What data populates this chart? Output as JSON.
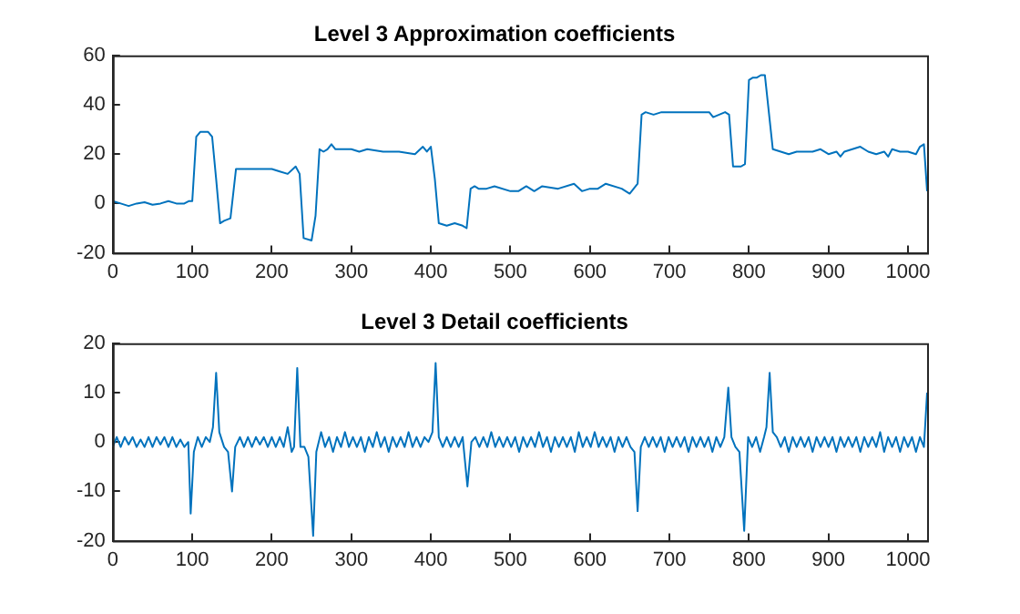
{
  "chart_data": [
    {
      "type": "line",
      "title": "Level 3 Approximation coefficients",
      "xlim": [
        0,
        1024
      ],
      "xticks": [
        0,
        100,
        200,
        300,
        400,
        500,
        600,
        700,
        800,
        900,
        1000
      ],
      "ylim": [
        -20,
        60
      ],
      "yticks": [
        -20,
        0,
        20,
        40,
        60
      ],
      "grid": false,
      "legend": false,
      "marker": "none",
      "line_style": "solid",
      "series": [
        {
          "color": "#0072bd",
          "x": [
            0,
            10,
            20,
            30,
            40,
            50,
            60,
            70,
            80,
            90,
            96,
            100,
            105,
            110,
            120,
            125,
            130,
            135,
            140,
            148,
            155,
            160,
            180,
            200,
            210,
            220,
            230,
            235,
            240,
            250,
            255,
            260,
            265,
            270,
            275,
            280,
            300,
            310,
            320,
            340,
            360,
            380,
            390,
            395,
            400,
            405,
            410,
            420,
            430,
            440,
            445,
            450,
            455,
            460,
            470,
            480,
            500,
            510,
            520,
            530,
            540,
            560,
            580,
            590,
            600,
            610,
            620,
            640,
            650,
            660,
            665,
            670,
            680,
            690,
            700,
            720,
            740,
            750,
            755,
            770,
            775,
            780,
            790,
            795,
            800,
            805,
            810,
            815,
            820,
            830,
            840,
            850,
            860,
            880,
            890,
            900,
            910,
            915,
            920,
            940,
            950,
            960,
            970,
            975,
            980,
            990,
            1000,
            1010,
            1015,
            1020,
            1024
          ],
          "values": [
            1,
            0,
            -1,
            0,
            0.5,
            -0.5,
            0,
            1,
            0,
            0,
            1,
            1,
            27,
            29,
            29,
            27,
            10,
            -8,
            -7,
            -6,
            14,
            14,
            14,
            14,
            13,
            12,
            15,
            12,
            -14,
            -15,
            -5,
            22,
            21,
            22,
            24,
            22,
            22,
            21,
            22,
            21,
            21,
            20,
            23,
            21,
            23,
            10,
            -8,
            -9,
            -8,
            -9,
            -10,
            6,
            7,
            6,
            6,
            7,
            5,
            5,
            7,
            5,
            7,
            6,
            8,
            5,
            6,
            6,
            8,
            6,
            4,
            8,
            36,
            37,
            36,
            37,
            37,
            37,
            37,
            37,
            35,
            37,
            36,
            15,
            15,
            16,
            50,
            51,
            51,
            52,
            52,
            22,
            21,
            20,
            21,
            21,
            22,
            20,
            21,
            19,
            21,
            23,
            21,
            20,
            21,
            19,
            22,
            21,
            21,
            20,
            23,
            24,
            5
          ]
        }
      ]
    },
    {
      "type": "line",
      "title": "Level 3 Detail coefficients",
      "xlim": [
        0,
        1024
      ],
      "xticks": [
        0,
        100,
        200,
        300,
        400,
        500,
        600,
        700,
        800,
        900,
        1000
      ],
      "ylim": [
        -20,
        20
      ],
      "yticks": [
        -20,
        -10,
        0,
        10,
        20
      ],
      "grid": false,
      "legend": false,
      "marker": "none",
      "line_style": "solid",
      "series": [
        {
          "color": "#0072bd",
          "x": [
            0,
            5,
            10,
            15,
            20,
            25,
            30,
            35,
            40,
            45,
            50,
            55,
            60,
            65,
            70,
            75,
            80,
            85,
            90,
            95,
            98,
            102,
            107,
            112,
            117,
            122,
            126,
            130,
            134,
            140,
            145,
            150,
            154,
            160,
            165,
            170,
            175,
            180,
            185,
            190,
            195,
            200,
            205,
            210,
            215,
            220,
            225,
            228,
            232,
            236,
            241,
            246,
            252,
            256,
            262,
            267,
            272,
            277,
            282,
            287,
            292,
            297,
            302,
            307,
            312,
            317,
            322,
            327,
            332,
            337,
            342,
            347,
            352,
            357,
            362,
            367,
            372,
            377,
            382,
            387,
            392,
            397,
            402,
            406,
            410,
            415,
            420,
            425,
            430,
            435,
            440,
            446,
            451,
            456,
            461,
            466,
            471,
            476,
            481,
            486,
            491,
            496,
            501,
            506,
            511,
            516,
            521,
            526,
            531,
            536,
            541,
            546,
            551,
            556,
            561,
            566,
            571,
            576,
            581,
            586,
            591,
            596,
            601,
            606,
            611,
            616,
            621,
            626,
            631,
            636,
            641,
            646,
            651,
            656,
            660,
            664,
            669,
            674,
            679,
            684,
            689,
            694,
            699,
            704,
            709,
            714,
            719,
            724,
            729,
            734,
            739,
            744,
            749,
            754,
            759,
            764,
            769,
            774,
            778,
            783,
            788,
            794,
            799,
            804,
            809,
            814,
            819,
            822,
            826,
            830,
            835,
            840,
            845,
            850,
            855,
            860,
            865,
            870,
            875,
            880,
            885,
            890,
            895,
            900,
            905,
            910,
            915,
            920,
            925,
            930,
            935,
            940,
            945,
            950,
            955,
            960,
            965,
            970,
            975,
            980,
            985,
            990,
            995,
            1000,
            1005,
            1010,
            1015,
            1020,
            1024
          ],
          "values": [
            -1,
            1,
            -1,
            1,
            -0.5,
            1,
            -1,
            0.5,
            -1,
            1,
            -1,
            1,
            -0.5,
            1,
            -1,
            1,
            -1,
            0.5,
            -1,
            0,
            -14.5,
            -2,
            1,
            -1,
            1,
            0,
            3,
            14,
            2,
            -1,
            -2,
            -10,
            -1,
            1,
            -1,
            1,
            -1,
            1,
            -0.5,
            1,
            -1,
            1,
            -1,
            1,
            -1,
            3,
            -2,
            -1,
            15,
            -1,
            -1,
            -3,
            -19,
            -2,
            2,
            -1,
            1,
            -2,
            1,
            -1,
            2,
            -1,
            1,
            -1,
            1,
            -2,
            1,
            -1,
            2,
            -1,
            1,
            -2,
            1,
            -1,
            1,
            -1,
            2,
            -1,
            1,
            -1,
            1,
            0,
            2,
            16,
            1,
            -1,
            1,
            -1,
            1,
            -1,
            1,
            -9,
            0,
            1,
            -1,
            1,
            -1,
            2,
            -1,
            1,
            -1,
            1,
            -1,
            1,
            -2,
            1,
            -1,
            1,
            -1,
            2,
            -1,
            1,
            -2,
            1,
            -1,
            1,
            -1,
            1,
            -2,
            2,
            -1,
            1,
            -1,
            2,
            -1,
            1,
            -1,
            1,
            -2,
            1,
            -1,
            1,
            -1,
            -2,
            -14,
            -1,
            1,
            -1,
            1,
            -1,
            1,
            -2,
            1,
            -1,
            1,
            -1,
            1,
            -2,
            1,
            -1,
            1,
            -1,
            1,
            -2,
            1,
            -1,
            1,
            11,
            1,
            -1,
            -2,
            -18,
            1,
            -1,
            1,
            -2,
            1,
            3,
            14,
            2,
            1,
            -1,
            1,
            -2,
            1,
            -1,
            1,
            -1,
            1,
            -2,
            1,
            -1,
            1,
            -1,
            1,
            -2,
            1,
            -1,
            1,
            -1,
            1,
            -2,
            1,
            -1,
            1,
            -1,
            2,
            -2,
            1,
            -1,
            1,
            -2,
            1,
            -1,
            1,
            -2,
            1,
            -1,
            10
          ]
        }
      ]
    }
  ]
}
